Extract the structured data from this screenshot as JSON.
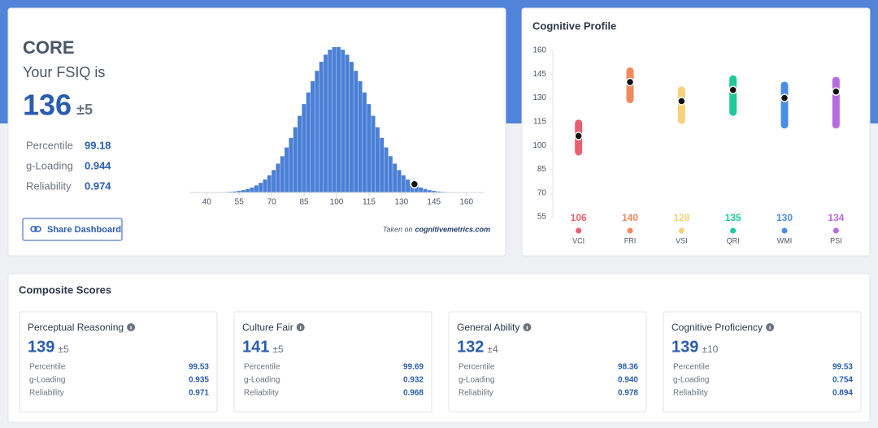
{
  "core": {
    "title": "CORE",
    "subtitle": "Your FSIQ is",
    "score": 136,
    "margin": "±5",
    "stats": [
      {
        "label": "Percentile",
        "value": "99.18"
      },
      {
        "label": "g-Loading",
        "value": "0.944"
      },
      {
        "label": "Reliability",
        "value": "0.974"
      }
    ],
    "button": "Share Dashboard",
    "source_prefix": "Taken on",
    "source_site": "cognitivemetrics.com",
    "distribution": {
      "type": "histogram",
      "bins": [
        40,
        42,
        44,
        46,
        48,
        50,
        52,
        54,
        56,
        58,
        60,
        62,
        64,
        66,
        68,
        70,
        72,
        74,
        76,
        78,
        80,
        82,
        84,
        86,
        88,
        90,
        92,
        94,
        96,
        98,
        100,
        102,
        104,
        106,
        108,
        110,
        112,
        114,
        116,
        118,
        120,
        122,
        124,
        126,
        128,
        130,
        132,
        134,
        136,
        138,
        140,
        142,
        144,
        146,
        148,
        150,
        152,
        154,
        156,
        158,
        160
      ],
      "values": [
        0,
        0.1,
        0.1,
        0.2,
        0.3,
        0.5,
        0.7,
        1.1,
        1.6,
        2.4,
        3.4,
        4.8,
        6.6,
        8.9,
        11.8,
        15.4,
        19.8,
        24.9,
        30.9,
        37.5,
        44.8,
        52.6,
        60.7,
        68.7,
        76.4,
        83.5,
        89.7,
        94.6,
        98.0,
        99.8,
        99.8,
        98.0,
        94.6,
        89.7,
        83.5,
        76.4,
        68.7,
        60.7,
        52.6,
        44.8,
        37.5,
        30.9,
        24.9,
        19.8,
        15.4,
        11.8,
        8.9,
        6.6,
        4.8,
        3.4,
        2.4,
        1.6,
        1.1,
        0.7,
        0.5,
        0.3,
        0.2,
        0.1,
        0.1,
        0
      ],
      "color": "#4a7fd6",
      "xlim": [
        32,
        168
      ],
      "xticks": [
        40,
        55,
        70,
        85,
        100,
        115,
        130,
        145,
        160
      ]
    }
  },
  "profile": {
    "title": "Cognitive Profile",
    "chart": {
      "type": "range",
      "categories": [
        "VCI",
        "FRI",
        "VSI",
        "QRI",
        "WMI",
        "PSI"
      ],
      "values": [
        106,
        140,
        128,
        135,
        130,
        134
      ],
      "lower": [
        96,
        129,
        116,
        121,
        113,
        113
      ],
      "upper": [
        114,
        147,
        135,
        142,
        138,
        141
      ],
      "colors": [
        "#e8606f",
        "#f08a5d",
        "#f7d27a",
        "#1fc99a",
        "#4a8de8",
        "#b76be0"
      ],
      "ylim": [
        55,
        160
      ],
      "yticks": [
        55,
        70,
        85,
        100,
        115,
        130,
        145,
        160
      ]
    }
  },
  "composite": {
    "title": "Composite Scores",
    "cards": [
      {
        "name": "Perceptual Reasoning",
        "score": 139,
        "margin": "±5",
        "stats": [
          {
            "label": "Percentile",
            "value": "99.53"
          },
          {
            "label": "g-Loading",
            "value": "0.935"
          },
          {
            "label": "Reliability",
            "value": "0.971"
          }
        ]
      },
      {
        "name": "Culture Fair",
        "score": 141,
        "margin": "±5",
        "stats": [
          {
            "label": "Percentile",
            "value": "99.69"
          },
          {
            "label": "g-Loading",
            "value": "0.932"
          },
          {
            "label": "Reliability",
            "value": "0.968"
          }
        ]
      },
      {
        "name": "General Ability",
        "score": 132,
        "margin": "±4",
        "stats": [
          {
            "label": "Percentile",
            "value": "98.36"
          },
          {
            "label": "g-Loading",
            "value": "0.940"
          },
          {
            "label": "Reliability",
            "value": "0.978"
          }
        ]
      },
      {
        "name": "Cognitive Proficiency",
        "score": 139,
        "margin": "±10",
        "stats": [
          {
            "label": "Percentile",
            "value": "99.53"
          },
          {
            "label": "g-Loading",
            "value": "0.754"
          },
          {
            "label": "Reliability",
            "value": "0.894"
          }
        ]
      }
    ]
  }
}
